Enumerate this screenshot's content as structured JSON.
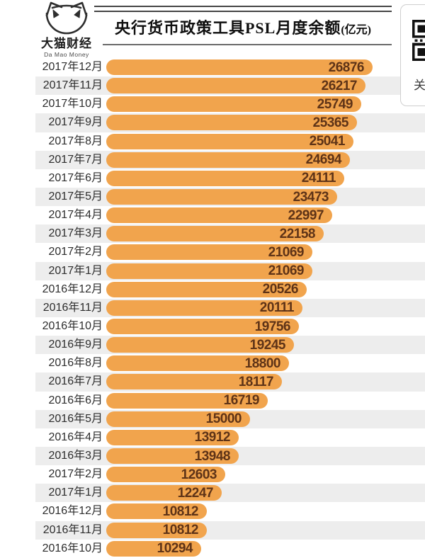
{
  "logo": {
    "cn": "大猫财经",
    "en": "Da Mao Money"
  },
  "header": {
    "title": "央行货币政策工具PSL月度余额",
    "unit": "(亿元)"
  },
  "side_panel": {
    "qr_icon": "qr-code-partial",
    "partial_text": "关"
  },
  "colors": {
    "bar": "#F1A44D",
    "bar_value_text": "#5E3317",
    "row_stripe": "#EDEDED",
    "label_text": "#2D2D2D"
  },
  "chart_data": {
    "type": "bar",
    "orientation": "horizontal",
    "title": "央行货币政策工具PSL月度余额(亿元)",
    "unit": "亿元",
    "value_labels": "inside-bar-right",
    "legend": "none",
    "max_value": 26876,
    "categories": [
      "2017年12月",
      "2017年11月",
      "2017年10月",
      "2017年9月",
      "2017年8月",
      "2017年7月",
      "2017年6月",
      "2017年5月",
      "2017年4月",
      "2017年3月",
      "2017年2月",
      "2017年1月",
      "2016年12月",
      "2016年11月",
      "2016年10月",
      "2016年9月",
      "2016年8月",
      "2016年7月",
      "2016年6月",
      "2016年5月",
      "2016年4月",
      "2016年3月",
      "2017年2月",
      "2017年1月",
      "2016年12月",
      "2016年11月",
      "2016年10月"
    ],
    "values": [
      26876,
      26217,
      25749,
      25365,
      25041,
      24694,
      24111,
      23473,
      22997,
      22158,
      21069,
      21069,
      20526,
      20111,
      19756,
      19245,
      18800,
      18117,
      16719,
      15000,
      13912,
      13948,
      12603,
      12247,
      10812,
      10812,
      10294
    ]
  }
}
